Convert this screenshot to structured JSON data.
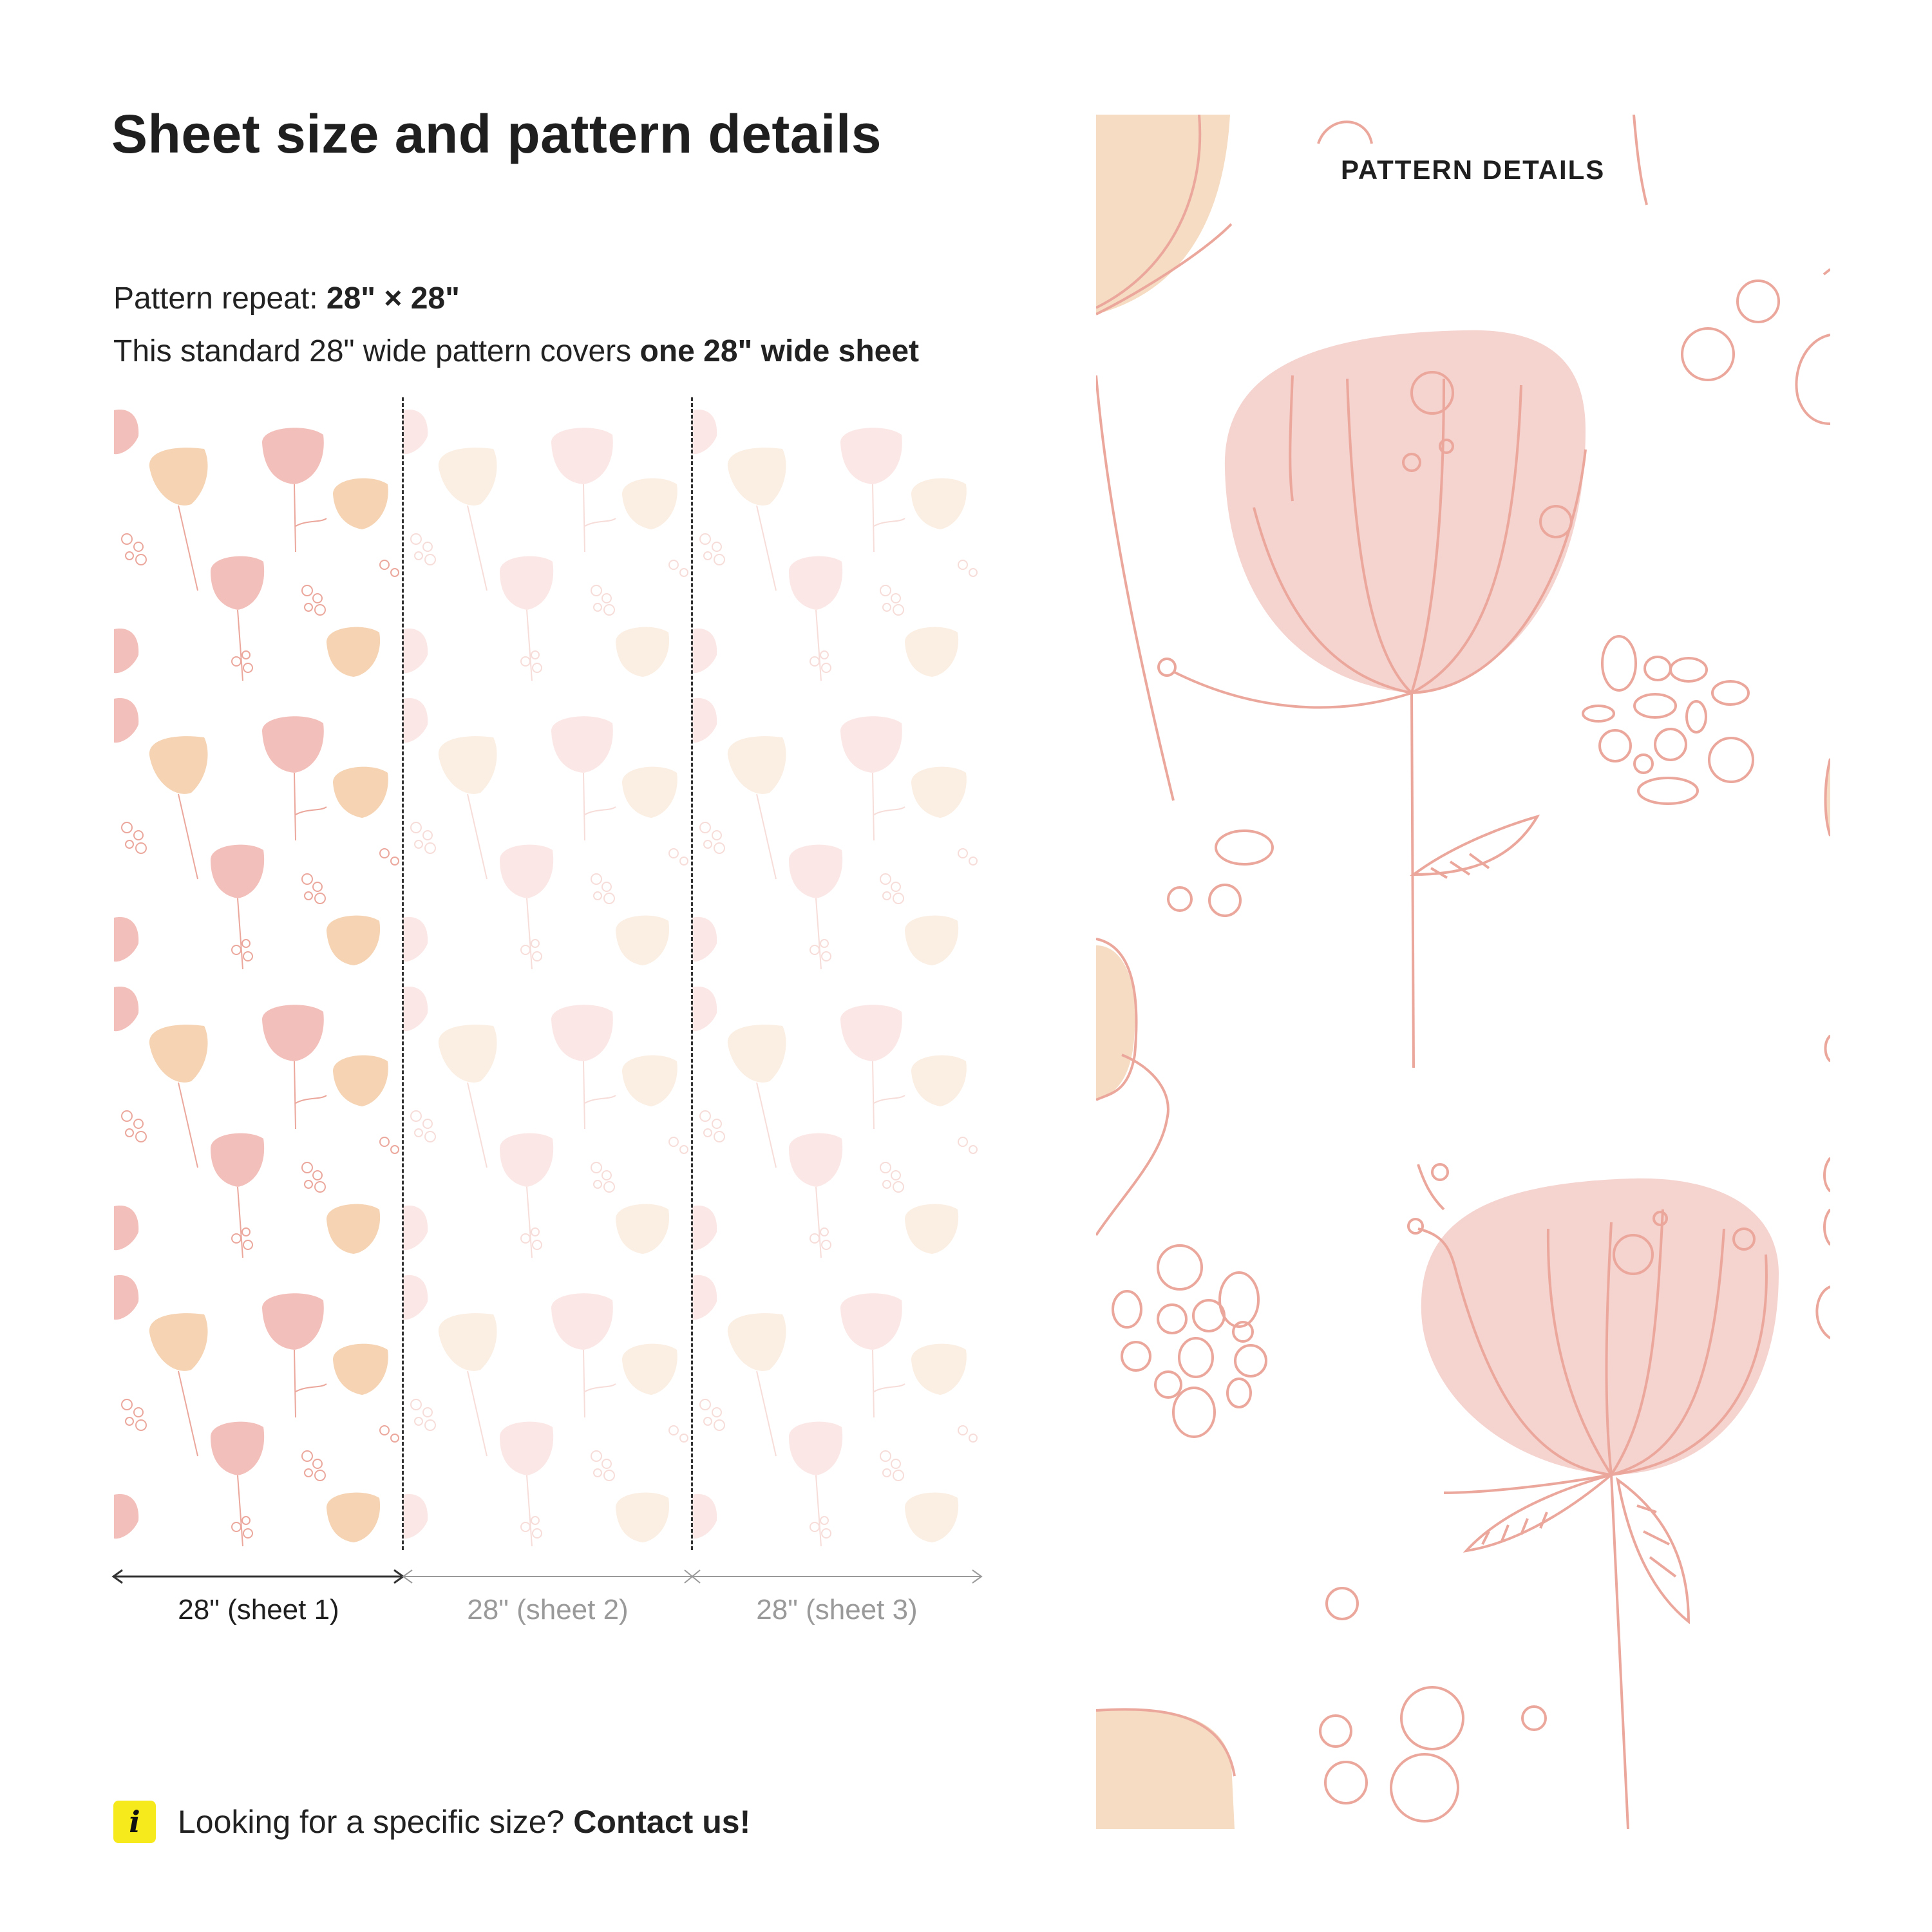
{
  "page": {
    "title": "Sheet size and pattern details"
  },
  "pattern_info": {
    "repeat_label": "Pattern repeat: ",
    "repeat_value": "28\" × 28\"",
    "coverage_text": "This standard 28\" wide pattern covers ",
    "coverage_bold": "one 28\" wide sheet"
  },
  "sheets": [
    {
      "label": "28\" (sheet 1)",
      "state": "active"
    },
    {
      "label": "28\" (sheet 2)",
      "state": "inactive"
    },
    {
      "label": "28\" (sheet 3)",
      "state": "inactive"
    }
  ],
  "contact": {
    "icon": "info-icon",
    "question": "Looking for a specific size? ",
    "cta": "Contact us!"
  },
  "detail": {
    "title": "PATTERN DETAILS"
  },
  "colors": {
    "pink": "#f5d3cf",
    "peach": "#f5dcc2",
    "line": "#eba79c",
    "info_badge": "#f7ea1c"
  }
}
